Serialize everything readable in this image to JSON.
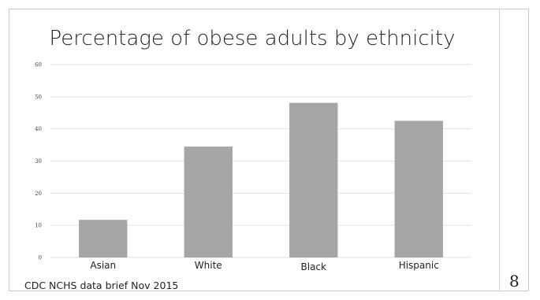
{
  "slide": {
    "footer": "CDC NCHS data brief Nov 2015",
    "page_number": "8"
  },
  "chart_data": {
    "type": "bar",
    "title": "Percentage of obese adults by ethnicity",
    "categories": [
      "Asian",
      "White",
      "Black",
      "Hispanic"
    ],
    "values": [
      11.7,
      34.5,
      48.1,
      42.5
    ],
    "xlabel": "",
    "ylabel": "",
    "ylim": [
      0,
      60
    ],
    "yticks": [
      "0",
      "10",
      "20",
      "30",
      "40",
      "50",
      "60"
    ],
    "grid": true,
    "legend": "none",
    "bar_color": "#a6a6a6",
    "grid_color": "#e0e0e0"
  }
}
